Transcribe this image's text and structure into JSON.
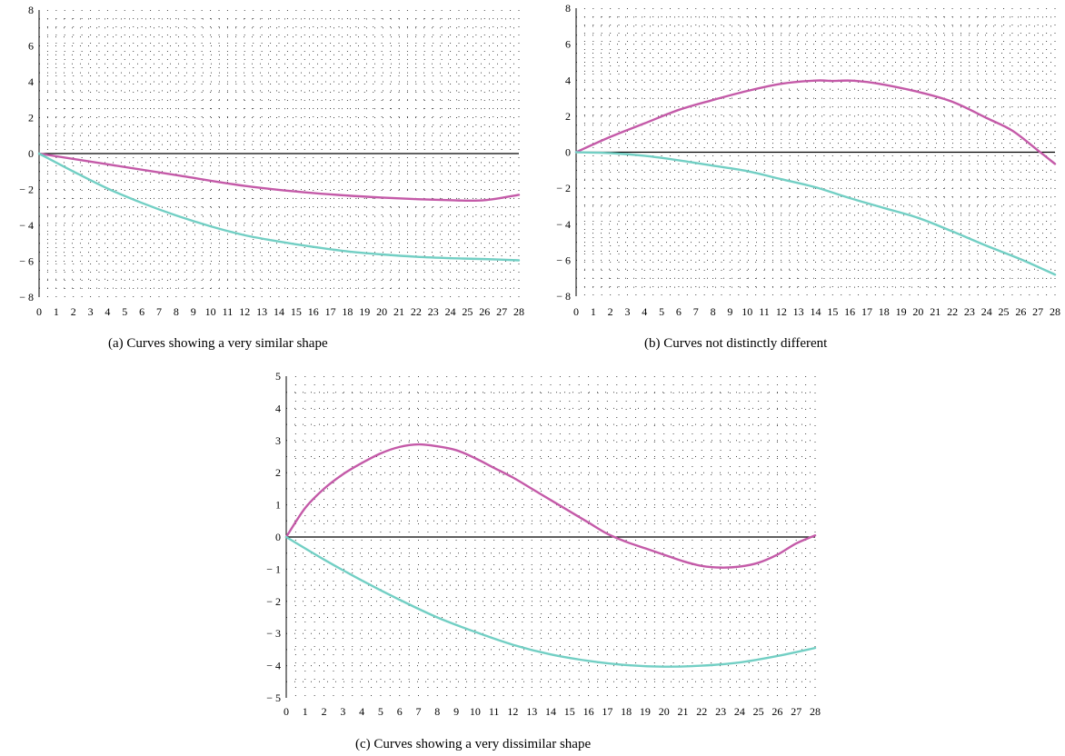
{
  "chart_data": [
    {
      "type": "line",
      "caption": "(a)  Curves showing a very similar shape",
      "x_ticks": [
        0,
        1,
        2,
        3,
        4,
        5,
        6,
        7,
        8,
        9,
        10,
        11,
        12,
        13,
        14,
        15,
        16,
        17,
        18,
        19,
        20,
        21,
        22,
        23,
        24,
        25,
        26,
        27,
        28
      ],
      "y_ticks": [
        8,
        6,
        4,
        2,
        0,
        -2,
        -4,
        -6,
        -8
      ],
      "y_tick_labels": [
        "8",
        "6",
        "4",
        "2",
        "0",
        "− 2",
        "− 4",
        "− 6",
        "− 8"
      ],
      "xlim": [
        0,
        28
      ],
      "ylim": [
        -8,
        8
      ],
      "grid": true,
      "series": [
        {
          "color": "#c45aa8",
          "x": [
            0,
            4,
            8,
            12,
            16,
            20,
            24,
            26,
            28
          ],
          "y": [
            0,
            -0.6,
            -1.2,
            -1.8,
            -2.2,
            -2.45,
            -2.6,
            -2.6,
            -2.3
          ]
        },
        {
          "color": "#72cfc4",
          "x": [
            0,
            2,
            4,
            6,
            8,
            10,
            12,
            14,
            16,
            18,
            20,
            22,
            24,
            26,
            28
          ],
          "y": [
            0,
            -1.0,
            -1.95,
            -2.75,
            -3.45,
            -4.05,
            -4.55,
            -4.9,
            -5.2,
            -5.45,
            -5.62,
            -5.75,
            -5.83,
            -5.88,
            -5.95
          ]
        }
      ]
    },
    {
      "type": "line",
      "caption": "(b)  Curves not distinctly different",
      "x_ticks": [
        0,
        1,
        2,
        3,
        4,
        5,
        6,
        7,
        8,
        9,
        10,
        11,
        12,
        13,
        14,
        15,
        16,
        17,
        18,
        19,
        20,
        21,
        22,
        23,
        24,
        25,
        26,
        27,
        28
      ],
      "y_ticks": [
        8,
        6,
        4,
        2,
        0,
        -2,
        -4,
        -6,
        -8
      ],
      "y_tick_labels": [
        "8",
        "6",
        "4",
        "2",
        "0",
        "− 2",
        "− 4",
        "− 6",
        "− 8"
      ],
      "xlim": [
        0,
        28
      ],
      "ylim": [
        -8,
        8
      ],
      "grid": true,
      "series": [
        {
          "color": "#c45aa8",
          "x": [
            0,
            2,
            4,
            6,
            8,
            10,
            12,
            14,
            15,
            16,
            17,
            18,
            20,
            22,
            24,
            25.5,
            27,
            28
          ],
          "y": [
            0,
            0.85,
            1.6,
            2.35,
            2.9,
            3.4,
            3.8,
            3.98,
            3.96,
            3.98,
            3.9,
            3.75,
            3.35,
            2.8,
            1.9,
            1.2,
            0.1,
            -0.65
          ]
        },
        {
          "color": "#72cfc4",
          "x": [
            0,
            2,
            4,
            6,
            8,
            10,
            12,
            14,
            16,
            18,
            20,
            22,
            24,
            26,
            28
          ],
          "y": [
            0,
            -0.05,
            -0.2,
            -0.45,
            -0.75,
            -1.05,
            -1.5,
            -1.95,
            -2.55,
            -3.1,
            -3.65,
            -4.4,
            -5.2,
            -5.95,
            -6.8
          ]
        }
      ]
    },
    {
      "type": "line",
      "caption": "(c)  Curves showing a very dissimilar shape",
      "x_ticks": [
        0,
        1,
        2,
        3,
        4,
        5,
        6,
        7,
        8,
        9,
        10,
        11,
        12,
        13,
        14,
        15,
        16,
        17,
        18,
        19,
        20,
        21,
        22,
        23,
        24,
        25,
        26,
        27,
        28
      ],
      "y_ticks": [
        5,
        4,
        3,
        2,
        1,
        0,
        -1,
        -2,
        -3,
        -4,
        -5
      ],
      "y_tick_labels": [
        "5",
        "4",
        "3",
        "2",
        "1",
        "0",
        "− 1",
        "− 2",
        "− 3",
        "− 4",
        "− 5"
      ],
      "xlim": [
        0,
        28
      ],
      "ylim": [
        -5,
        5
      ],
      "grid": true,
      "series": [
        {
          "color": "#c45aa8",
          "x": [
            0,
            1,
            2,
            3,
            4,
            5,
            6,
            7,
            8,
            9,
            10,
            11,
            12,
            13,
            14,
            15,
            16,
            17,
            18,
            19,
            20,
            21,
            22,
            23,
            24,
            25,
            26,
            27,
            28
          ],
          "y": [
            0,
            0.9,
            1.5,
            1.95,
            2.3,
            2.6,
            2.8,
            2.88,
            2.82,
            2.7,
            2.45,
            2.15,
            1.85,
            1.5,
            1.15,
            0.8,
            0.45,
            0.1,
            -0.15,
            -0.35,
            -0.55,
            -0.75,
            -0.9,
            -0.95,
            -0.92,
            -0.8,
            -0.55,
            -0.2,
            0.05
          ]
        },
        {
          "color": "#72cfc4",
          "x": [
            0,
            2,
            4,
            6,
            8,
            10,
            12,
            14,
            16,
            18,
            20,
            22,
            24,
            26,
            28
          ],
          "y": [
            0,
            -0.7,
            -1.35,
            -1.95,
            -2.5,
            -2.95,
            -3.35,
            -3.65,
            -3.85,
            -3.98,
            -4.03,
            -4.0,
            -3.9,
            -3.7,
            -3.45
          ]
        }
      ]
    }
  ]
}
